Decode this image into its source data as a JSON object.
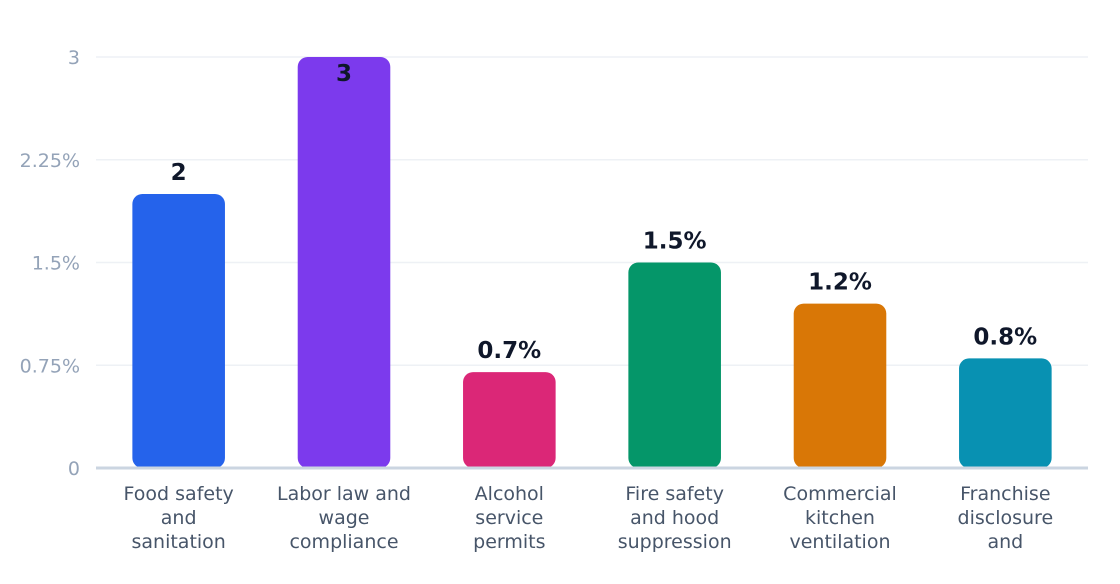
{
  "chart_data": {
    "type": "bar",
    "title": "",
    "xlabel": "",
    "ylabel": "",
    "ylim": [
      0,
      3
    ],
    "y_ticks": [
      {
        "value": 0,
        "label": "0"
      },
      {
        "value": 0.75,
        "label": "0.75%"
      },
      {
        "value": 1.5,
        "label": "1.5%"
      },
      {
        "value": 2.25,
        "label": "2.25%"
      },
      {
        "value": 3,
        "label": "3"
      }
    ],
    "grid": true,
    "legend": "none",
    "categories": [
      [
        "Food safety",
        "and",
        "sanitation"
      ],
      [
        "Labor law and",
        "wage",
        "compliance"
      ],
      [
        "Alcohol",
        "service",
        "permits"
      ],
      [
        "Fire safety",
        "and hood",
        "suppression"
      ],
      [
        "Commercial",
        "kitchen",
        "ventilation"
      ],
      [
        "Franchise",
        "disclosure",
        "and"
      ]
    ],
    "values": [
      2,
      3,
      0.7,
      1.5,
      1.2,
      0.8
    ],
    "value_labels": [
      "2",
      "3",
      "0.7%",
      "1.5%",
      "1.2%",
      "0.8%"
    ],
    "colors": [
      "#2563eb",
      "#7c3aed",
      "#db2777",
      "#059669",
      "#d97706",
      "#0891b2"
    ]
  }
}
